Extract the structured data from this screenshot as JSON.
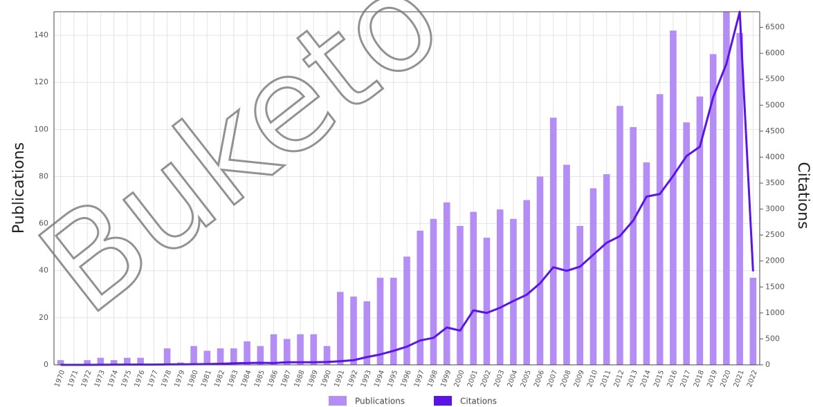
{
  "chart_data": {
    "type": "bar_line",
    "watermark": "Buketo",
    "y_label": "Publications",
    "y2_label": "Citations",
    "categories": [
      "1970",
      "1971",
      "1972",
      "1973",
      "1974",
      "1975",
      "1976",
      "1977",
      "1978",
      "1979",
      "1980",
      "1981",
      "1982",
      "1983",
      "1984",
      "1985",
      "1986",
      "1987",
      "1988",
      "1989",
      "1990",
      "1991",
      "1992",
      "1993",
      "1994",
      "1995",
      "1996",
      "1997",
      "1998",
      "1999",
      "2000",
      "2001",
      "2002",
      "2003",
      "2004",
      "2005",
      "2006",
      "2007",
      "2008",
      "2009",
      "2010",
      "2011",
      "2012",
      "2013",
      "2014",
      "2015",
      "2016",
      "2017",
      "2018",
      "2019",
      "2020",
      "2021",
      "2022"
    ],
    "series": [
      {
        "name": "Publications",
        "color": "#b48ef5",
        "kind": "bar",
        "values": [
          2,
          0,
          2,
          3,
          2,
          3,
          3,
          0,
          7,
          1,
          8,
          6,
          7,
          7,
          10,
          8,
          13,
          11,
          13,
          13,
          8,
          31,
          29,
          27,
          37,
          37,
          46,
          57,
          62,
          69,
          59,
          65,
          54,
          66,
          62,
          70,
          80,
          105,
          85,
          59,
          75,
          81,
          110,
          101,
          86,
          115,
          142,
          103,
          114,
          132,
          150,
          141,
          37
        ]
      },
      {
        "name": "Citations",
        "color": "#5b14e6",
        "kind": "line",
        "axis": "y2",
        "values": [
          0,
          0,
          0,
          2,
          3,
          5,
          5,
          5,
          8,
          10,
          12,
          15,
          20,
          30,
          35,
          40,
          35,
          50,
          50,
          50,
          55,
          70,
          90,
          150,
          200,
          270,
          350,
          470,
          520,
          720,
          660,
          1050,
          1000,
          1100,
          1230,
          1350,
          1570,
          1880,
          1810,
          1890,
          2120,
          2350,
          2480,
          2780,
          3240,
          3290,
          3640,
          4020,
          4200,
          5150,
          5800,
          6800,
          1800
        ]
      }
    ],
    "ylim": [
      0,
      150
    ],
    "yticks": [
      0,
      20,
      40,
      60,
      80,
      100,
      120,
      140
    ],
    "y2lim": [
      0,
      6800
    ],
    "y2ticks": [
      0,
      500,
      1000,
      1500,
      2000,
      2500,
      3000,
      3500,
      4000,
      4500,
      5000,
      5500,
      6000,
      6500
    ],
    "grid": true,
    "legend": "bottom"
  }
}
